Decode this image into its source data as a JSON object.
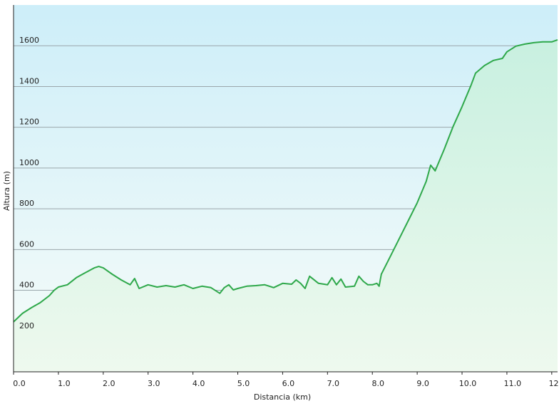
{
  "chart_data": {
    "type": "area",
    "x_label": "Distancia  (km)",
    "y_label": "Altura (m)",
    "color": "#2ea84a",
    "series": [
      {
        "x": [
          0.0,
          0.2,
          0.4,
          0.6,
          0.8,
          0.9,
          1.0,
          1.2,
          1.4,
          1.6,
          1.8,
          1.9,
          2.0,
          2.2,
          2.4,
          2.6,
          2.7,
          2.8,
          3.0,
          3.2,
          3.4,
          3.6,
          3.8,
          4.0,
          4.2,
          4.4,
          4.6,
          4.7,
          4.8,
          4.9,
          5.0,
          5.2,
          5.4,
          5.6,
          5.8,
          6.0,
          6.2,
          6.3,
          6.4,
          6.5,
          6.6,
          6.8,
          7.0,
          7.1,
          7.2,
          7.3,
          7.4,
          7.6,
          7.7,
          7.8,
          7.9,
          8.0,
          8.1,
          8.15,
          8.2,
          8.4,
          8.6,
          8.8,
          9.0,
          9.2,
          9.3,
          9.4,
          9.6,
          9.8,
          10.0,
          10.2,
          10.3,
          10.5,
          10.7,
          10.9,
          11.0,
          11.2,
          11.4,
          11.6,
          11.8,
          12.0,
          12.13
        ],
        "values": [
          245,
          287,
          315,
          340,
          374,
          399,
          416,
          427,
          462,
          486,
          510,
          517,
          510,
          479,
          451,
          427,
          458,
          409,
          427,
          416,
          423,
          416,
          427,
          409,
          420,
          413,
          385,
          413,
          427,
          402,
          409,
          420,
          423,
          427,
          413,
          434,
          430,
          451,
          434,
          409,
          469,
          434,
          427,
          462,
          427,
          455,
          416,
          420,
          469,
          444,
          427,
          427,
          434,
          420,
          479,
          566,
          654,
          741,
          829,
          934,
          1014,
          986,
          1091,
          1203,
          1301,
          1406,
          1465,
          1503,
          1528,
          1538,
          1570,
          1598,
          1608,
          1615,
          1619,
          1619,
          1629
        ]
      }
    ],
    "xlim": [
      0,
      12.13
    ],
    "ylim": [
      0,
      1800
    ],
    "xticks": [
      {
        "value": 0,
        "label": "0.0"
      },
      {
        "value": 1,
        "label": "1.0"
      },
      {
        "value": 2,
        "label": "2.0"
      },
      {
        "value": 3,
        "label": "3.0"
      },
      {
        "value": 4,
        "label": "4.0"
      },
      {
        "value": 5,
        "label": "5.0"
      },
      {
        "value": 6,
        "label": "6.0"
      },
      {
        "value": 7,
        "label": "7.0"
      },
      {
        "value": 8,
        "label": "8.0"
      },
      {
        "value": 9,
        "label": "9.0"
      },
      {
        "value": 10,
        "label": "10.0"
      },
      {
        "value": 11,
        "label": "11.0"
      },
      {
        "value": 12,
        "label": "12.0"
      }
    ],
    "yticks": [
      200,
      400,
      600,
      800,
      1000,
      1200,
      1400,
      1600
    ],
    "grid": true
  }
}
